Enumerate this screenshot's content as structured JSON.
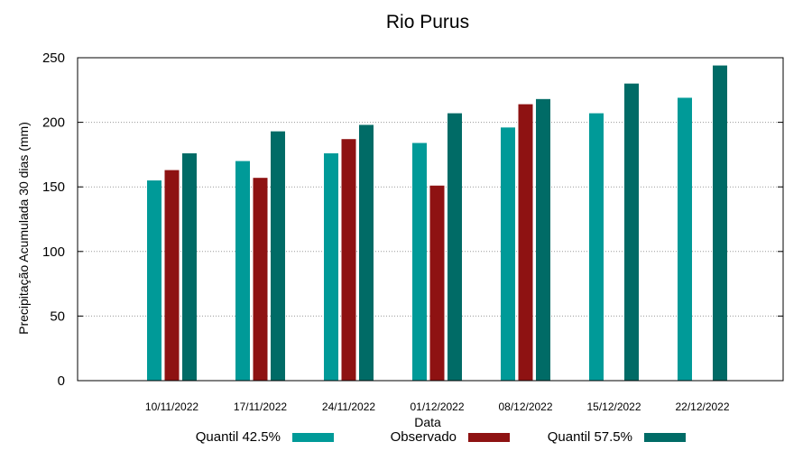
{
  "chart_data": {
    "type": "bar",
    "title": "Rio Purus",
    "xlabel": "Data",
    "ylabel": "Precipitação Acumulada 30 dias (mm)",
    "ylim": [
      0,
      250
    ],
    "yticks": [
      0,
      50,
      100,
      150,
      200,
      250
    ],
    "grid": true,
    "legend_position": "bottom",
    "categories": [
      "10/11/2022",
      "17/11/2022",
      "24/11/2022",
      "01/12/2022",
      "08/12/2022",
      "15/12/2022",
      "22/12/2022"
    ],
    "series": [
      {
        "name": "Quantil 42.5%",
        "color": "#009a98",
        "values": [
          155,
          170,
          176,
          184,
          196,
          207,
          219
        ]
      },
      {
        "name": "Observado",
        "color": "#8e1212",
        "values": [
          163,
          157,
          187,
          151,
          214,
          null,
          null
        ]
      },
      {
        "name": "Quantil 57.5%",
        "color": "#006b66",
        "values": [
          176,
          193,
          198,
          207,
          218,
          230,
          244
        ]
      }
    ]
  }
}
